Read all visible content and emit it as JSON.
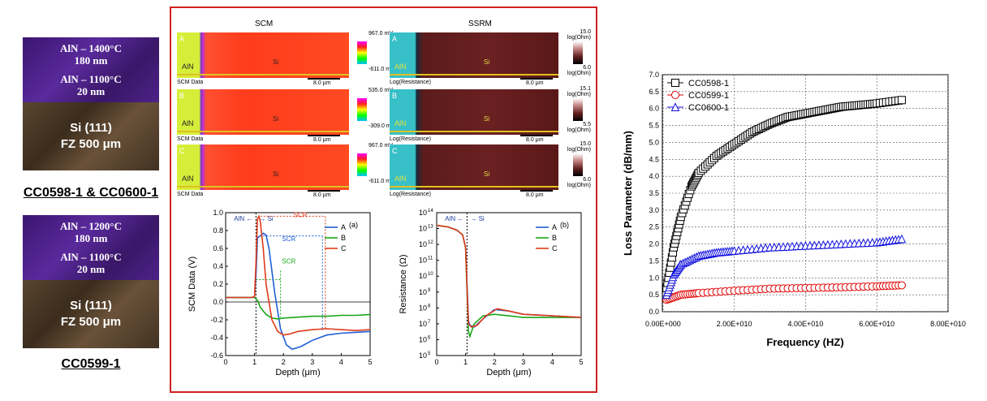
{
  "left_panel": {
    "stack1": {
      "aln1": "AlN – 1400°C",
      "aln1_thk": "180 nm",
      "aln2": "AlN – 1100°C",
      "aln2_thk": "20 nm",
      "si": "Si (111)",
      "si2": "FZ 500 μm"
    },
    "caption1": "CC0598-1 & CC0600-1",
    "stack2": {
      "aln1": "AlN – 1200°C",
      "aln1_thk": "180 nm",
      "aln2": "AlN – 1100°C",
      "aln2_thk": "20 nm",
      "si": "Si (111)",
      "si2": "FZ 500 μm"
    },
    "caption2": "CC0599-1"
  },
  "middle_panel": {
    "scm_title": "SCM",
    "ssrm_title": "SSRM",
    "scm_rows": [
      {
        "label": "A",
        "top": "967.0 mV",
        "bottom": "-611.0 mV",
        "footer": "SCM Data",
        "scale": "8.0 μm",
        "aln": "AlN",
        "si": "Si"
      },
      {
        "label": "B",
        "top": "535.0 mV",
        "bottom": "-309.0 mV",
        "footer": "SCM Data",
        "scale": "8.0 μm",
        "aln": "AlN",
        "si": "Si"
      },
      {
        "label": "C",
        "top": "967.0 mV",
        "bottom": "-611.0 mV",
        "footer": "SCM Data",
        "scale": "8.0 μm",
        "aln": "AlN",
        "si": "Si"
      }
    ],
    "ssrm_rows": [
      {
        "label": "A",
        "top": "15.0",
        "top2": "log(Ohm)",
        "bottom": "6.0",
        "bottom2": "log(Ohm)",
        "footer": "Log(Resistance)",
        "scale": "8.0 μm",
        "aln": "AlN",
        "si": "Si"
      },
      {
        "label": "B",
        "top": "15.1",
        "top2": "log(Ohm)",
        "bottom": "5.5",
        "bottom2": "log(Ohm)",
        "footer": "Log(Resistance)",
        "scale": "8.0 μm",
        "aln": "AlN",
        "si": "Si"
      },
      {
        "label": "C",
        "top": "15.0",
        "top2": "log(Ohm)",
        "bottom": "6.0",
        "bottom2": "log(Ohm)",
        "footer": "Log(Resistance)",
        "scale": "8.0 μm",
        "aln": "AlN",
        "si": "Si"
      }
    ]
  },
  "colors": {
    "A": "#1f5fd6",
    "B": "#1aa51a",
    "C": "#e03a1a",
    "black": "#000000",
    "red": "#e00000",
    "blue": "#1010e0"
  },
  "chart_data": [
    {
      "type": "line",
      "panel": "(a)",
      "xlabel": "Depth (μm)",
      "ylabel": "SCM Data (V)",
      "xlim": [
        0,
        5
      ],
      "ylim": [
        -0.6,
        1.0
      ],
      "xticks": [
        "0",
        "1",
        "2",
        "3",
        "4",
        "5"
      ],
      "yticks": [
        "-0.6",
        "-0.4",
        "-0.2",
        "0.0",
        "0.2",
        "0.4",
        "0.6",
        "0.8",
        "1.0"
      ],
      "annotations": {
        "aln": "AlN",
        "si": "Si",
        "scr1": "SCR",
        "scr2": "SCR",
        "scr3": "SCR"
      },
      "series": [
        {
          "name": "A",
          "x": [
            0,
            0.9,
            1.0,
            1.05,
            1.1,
            1.2,
            1.3,
            1.4,
            1.5,
            1.7,
            1.9,
            2.1,
            2.3,
            2.6,
            3.0,
            3.5,
            4.0,
            4.5,
            5.0
          ],
          "y": [
            0.05,
            0.05,
            0.06,
            0.3,
            0.72,
            0.74,
            0.77,
            0.75,
            0.6,
            0.1,
            -0.3,
            -0.48,
            -0.53,
            -0.5,
            -0.43,
            -0.37,
            -0.35,
            -0.34,
            -0.33
          ]
        },
        {
          "name": "B",
          "x": [
            0,
            0.9,
            1.0,
            1.1,
            1.2,
            1.4,
            1.6,
            1.8,
            2.0,
            2.5,
            3.0,
            3.5,
            4.0,
            4.5,
            5.0
          ],
          "y": [
            0.05,
            0.05,
            0.05,
            0.02,
            -0.06,
            -0.14,
            -0.18,
            -0.19,
            -0.18,
            -0.17,
            -0.16,
            -0.16,
            -0.15,
            -0.15,
            -0.14
          ]
        },
        {
          "name": "C",
          "x": [
            0,
            0.9,
            1.0,
            1.05,
            1.1,
            1.15,
            1.2,
            1.3,
            1.4,
            1.6,
            1.8,
            2.0,
            2.2,
            2.5,
            3.0,
            3.5,
            4.0,
            4.5,
            5.0
          ],
          "y": [
            0.05,
            0.05,
            0.06,
            0.45,
            0.93,
            0.96,
            0.9,
            0.6,
            0.2,
            -0.2,
            -0.33,
            -0.37,
            -0.36,
            -0.33,
            -0.31,
            -0.3,
            -0.31,
            -0.32,
            -0.31
          ]
        }
      ],
      "legend": "top-right"
    },
    {
      "type": "line",
      "panel": "(b)",
      "xlabel": "Depth (μm)",
      "ylabel": "Resistance (Ω)",
      "yscale": "log",
      "xlim": [
        0,
        5
      ],
      "ylim": [
        5,
        14
      ],
      "xticks": [
        "0",
        "1",
        "2",
        "3",
        "4",
        "5"
      ],
      "yticks": [
        "10^5",
        "10^6",
        "10^7",
        "10^8",
        "10^9",
        "10^10",
        "10^11",
        "10^12",
        "10^13",
        "10^14"
      ],
      "annotations": {
        "aln": "AlN",
        "si": "Si"
      },
      "series": [
        {
          "name": "A",
          "x": [
            0,
            0.4,
            0.7,
            0.9,
            1.0,
            1.05,
            1.1,
            1.15,
            1.3,
            1.6,
            2.0,
            2.5,
            3.0,
            4.0,
            5.0
          ],
          "y": [
            13.2,
            13.1,
            12.9,
            12.6,
            11.8,
            9.5,
            7.2,
            6.9,
            6.8,
            7.3,
            7.9,
            7.8,
            7.6,
            7.5,
            7.4
          ]
        },
        {
          "name": "B",
          "x": [
            0,
            0.4,
            0.7,
            0.9,
            1.0,
            1.05,
            1.1,
            1.15,
            1.3,
            1.6,
            2.0,
            2.5,
            3.0,
            4.0,
            5.0
          ],
          "y": [
            13.2,
            13.1,
            12.9,
            12.6,
            11.8,
            9.0,
            6.5,
            6.2,
            7.0,
            7.5,
            7.6,
            7.5,
            7.4,
            7.4,
            7.4
          ]
        },
        {
          "name": "C",
          "x": [
            0,
            0.4,
            0.7,
            0.9,
            1.0,
            1.05,
            1.1,
            1.2,
            1.4,
            1.7,
            2.1,
            2.5,
            3.0,
            4.0,
            5.0
          ],
          "y": [
            13.2,
            13.1,
            12.9,
            12.6,
            11.8,
            9.2,
            7.0,
            6.8,
            6.9,
            7.5,
            7.95,
            7.8,
            7.6,
            7.5,
            7.4
          ]
        }
      ],
      "legend": "top-right"
    },
    {
      "type": "scatter",
      "xlabel": "Frequency (HZ)",
      "ylabel": "Loss Parameter (dB/mm)",
      "xlim": [
        -200000000.0,
        80000000000.0
      ],
      "ylim": [
        0,
        7.0
      ],
      "xticks": [
        "0.00E+000",
        "2.00E+010",
        "4.00E+010",
        "6.00E+010",
        "8.00E+010"
      ],
      "yticks": [
        "0.0",
        "0.5",
        "1.0",
        "1.5",
        "2.0",
        "2.5",
        "3.0",
        "3.5",
        "4.0",
        "4.5",
        "5.0",
        "5.5",
        "6.0",
        "6.5",
        "7.0"
      ],
      "grid": true,
      "legend": "top-left",
      "series": [
        {
          "name": "CC0598-1",
          "marker": "square",
          "x": [
            1000000000.0,
            3000000000.0,
            5000000000.0,
            8000000000.0,
            10000000000.0,
            15000000000.0,
            20000000000.0,
            25000000000.0,
            30000000000.0,
            35000000000.0,
            40000000000.0,
            45000000000.0,
            50000000000.0,
            55000000000.0,
            60000000000.0,
            67000000000.0
          ],
          "y": [
            0.7,
            1.9,
            2.8,
            3.7,
            4.1,
            4.6,
            4.95,
            5.3,
            5.55,
            5.75,
            5.85,
            5.95,
            6.05,
            6.1,
            6.15,
            6.25
          ]
        },
        {
          "name": "CC0599-1",
          "marker": "circle",
          "x": [
            1000000000.0,
            5000000000.0,
            10000000000.0,
            20000000000.0,
            30000000000.0,
            40000000000.0,
            50000000000.0,
            60000000000.0,
            67000000000.0
          ],
          "y": [
            0.35,
            0.5,
            0.55,
            0.62,
            0.68,
            0.7,
            0.72,
            0.75,
            0.78
          ]
        },
        {
          "name": "CC0600-1",
          "marker": "triangle",
          "x": [
            1000000000.0,
            3000000000.0,
            5000000000.0,
            10000000000.0,
            15000000000.0,
            20000000000.0,
            30000000000.0,
            40000000000.0,
            50000000000.0,
            60000000000.0,
            67000000000.0
          ],
          "y": [
            0.5,
            1.1,
            1.4,
            1.65,
            1.75,
            1.8,
            1.9,
            1.95,
            2.0,
            2.05,
            2.15
          ]
        }
      ]
    }
  ]
}
